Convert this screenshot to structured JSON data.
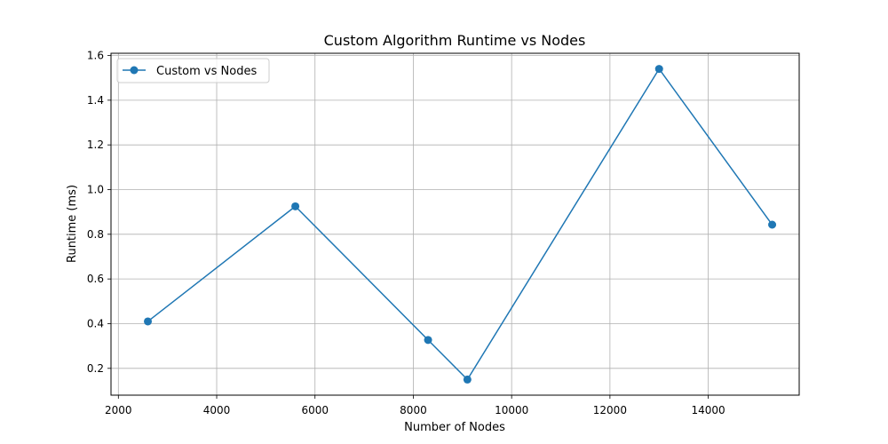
{
  "chart_data": {
    "type": "line",
    "title": "Custom Algorithm Runtime vs Nodes",
    "xlabel": "Number of Nodes",
    "ylabel": "Runtime (ms)",
    "xlim": [
      1850,
      15850
    ],
    "ylim": [
      0.08,
      1.61
    ],
    "xticks": [
      2000,
      4000,
      6000,
      8000,
      10000,
      12000,
      14000
    ],
    "yticks": [
      0.2,
      0.4,
      0.6,
      0.8,
      1.0,
      1.2,
      1.4,
      1.6
    ],
    "grid": true,
    "legend_position": "top-left",
    "series": [
      {
        "name": "Custom vs Nodes",
        "color": "#1f77b4",
        "marker": "circle",
        "x": [
          2600,
          5600,
          8300,
          9100,
          13000,
          15300
        ],
        "y": [
          0.41,
          0.925,
          0.327,
          0.15,
          1.54,
          0.843
        ]
      }
    ]
  }
}
